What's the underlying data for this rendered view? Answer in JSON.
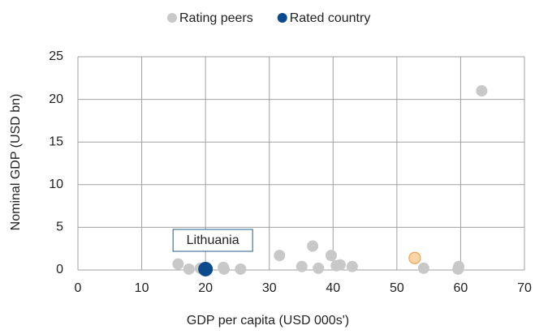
{
  "chart_data": {
    "type": "scatter",
    "xlabel": "GDP per capita (USD 000s')",
    "ylabel": "Nominal GDP (USD bn)",
    "annotation": "Lithuania",
    "series": [
      {
        "name": "Rating peers",
        "color": "#c8c8c8",
        "x": [
          15.7,
          17.4,
          19.2,
          22.8,
          22.9,
          25.5,
          31.6,
          35.1,
          36.8,
          37.7,
          39.7,
          40.5,
          41.1,
          43.0,
          54.2,
          59.7,
          59.6,
          63.3
        ],
        "values": [
          0.7,
          0.1,
          0.2,
          0.3,
          0.1,
          0.1,
          1.7,
          0.4,
          2.8,
          0.2,
          1.7,
          0.5,
          0.6,
          0.4,
          0.2,
          0.4,
          0.1,
          21.0
        ]
      },
      {
        "color": "#fcd5a8",
        "x": [
          52.8
        ],
        "values": [
          1.4
        ]
      },
      {
        "name": "Rated country",
        "color": "#0b4a8b",
        "x": [
          20.0
        ],
        "values": [
          0.1
        ]
      }
    ],
    "xlim": [
      0,
      70
    ],
    "xticks": [
      0,
      10,
      20,
      30,
      40,
      50,
      60,
      70
    ],
    "ylim": [
      0,
      25
    ],
    "yticks": [
      0,
      5,
      10,
      15,
      20,
      25
    ],
    "grid": true,
    "legend": "top"
  }
}
